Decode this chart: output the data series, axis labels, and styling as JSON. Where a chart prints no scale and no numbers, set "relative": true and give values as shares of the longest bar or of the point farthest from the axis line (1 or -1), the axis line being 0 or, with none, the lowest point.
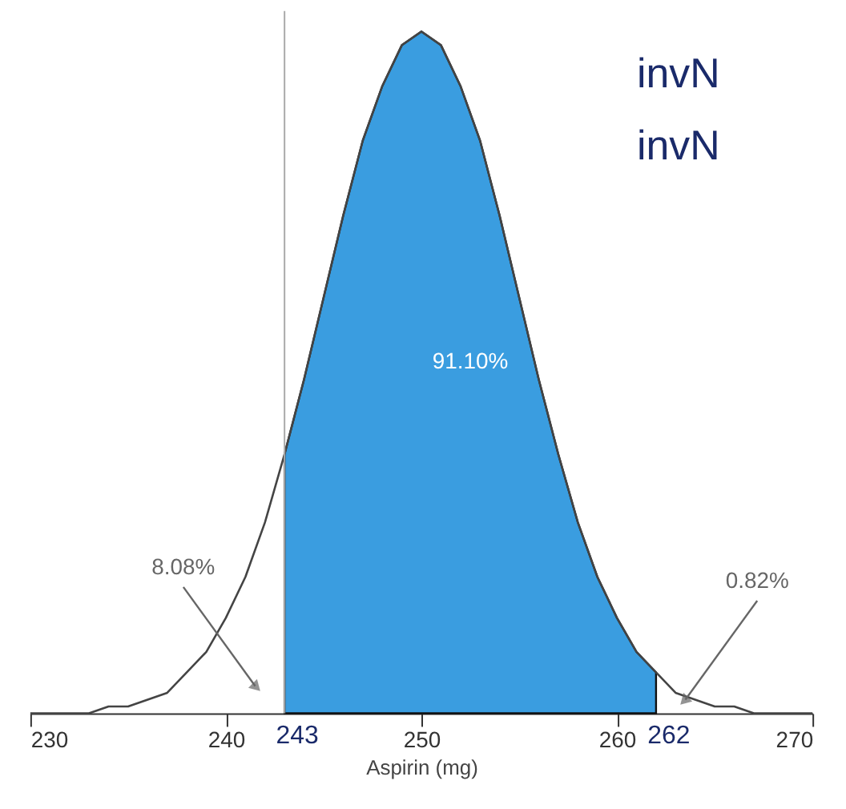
{
  "chart_data": {
    "type": "area",
    "relative": true,
    "xlabel": "Aspirin (mg)",
    "xlim": [
      230,
      270
    ],
    "xticks": [
      230,
      240,
      250,
      260,
      270
    ],
    "grid": false,
    "tick_labels": "x",
    "series": [
      {
        "color": "#3a9de0",
        "x": [
          243,
          244,
          245,
          246,
          247,
          248,
          249,
          250,
          251,
          252,
          253,
          254,
          255,
          256,
          257,
          258,
          259,
          260,
          261,
          262
        ],
        "values": [
          0.38,
          0.49,
          0.61,
          0.73,
          0.84,
          0.92,
          0.98,
          1,
          0.98,
          0.92,
          0.84,
          0.73,
          0.61,
          0.49,
          0.38,
          0.28,
          0.2,
          0.14,
          0.09,
          0.06
        ]
      },
      {
        "type": "line",
        "color": "#444444",
        "x": [
          230,
          231,
          232,
          233,
          234,
          235,
          236,
          237,
          238,
          239,
          240,
          241,
          242,
          243,
          244,
          245,
          246,
          247,
          248,
          249,
          250,
          251,
          252,
          253,
          254,
          255,
          256,
          257,
          258,
          259,
          260,
          261,
          262,
          263,
          264,
          265,
          266,
          267,
          268,
          269,
          270
        ],
        "values": [
          0,
          0,
          0,
          0,
          0.01,
          0.01,
          0.02,
          0.03,
          0.06,
          0.09,
          0.14,
          0.2,
          0.28,
          0.38,
          0.49,
          0.61,
          0.73,
          0.84,
          0.92,
          0.98,
          1,
          0.98,
          0.92,
          0.84,
          0.73,
          0.61,
          0.49,
          0.38,
          0.28,
          0.2,
          0.14,
          0.09,
          0.06,
          0.03,
          0.02,
          0.01,
          0.01,
          0,
          0,
          0,
          0
        ]
      }
    ],
    "ref_lines": [
      {
        "axis": "x",
        "value": 243,
        "color": "#aaaaaa"
      }
    ],
    "annotations": [
      "91.10%",
      {
        "text": "8.08%",
        "x": 241.5,
        "y": 0.04
      },
      {
        "text": "0.82%",
        "x": 263.5,
        "y": 0.02
      },
      {
        "text": "243",
        "x": 243,
        "y": 0
      },
      {
        "text": "262",
        "x": 262,
        "y": 0
      },
      "invN",
      "invN"
    ]
  }
}
